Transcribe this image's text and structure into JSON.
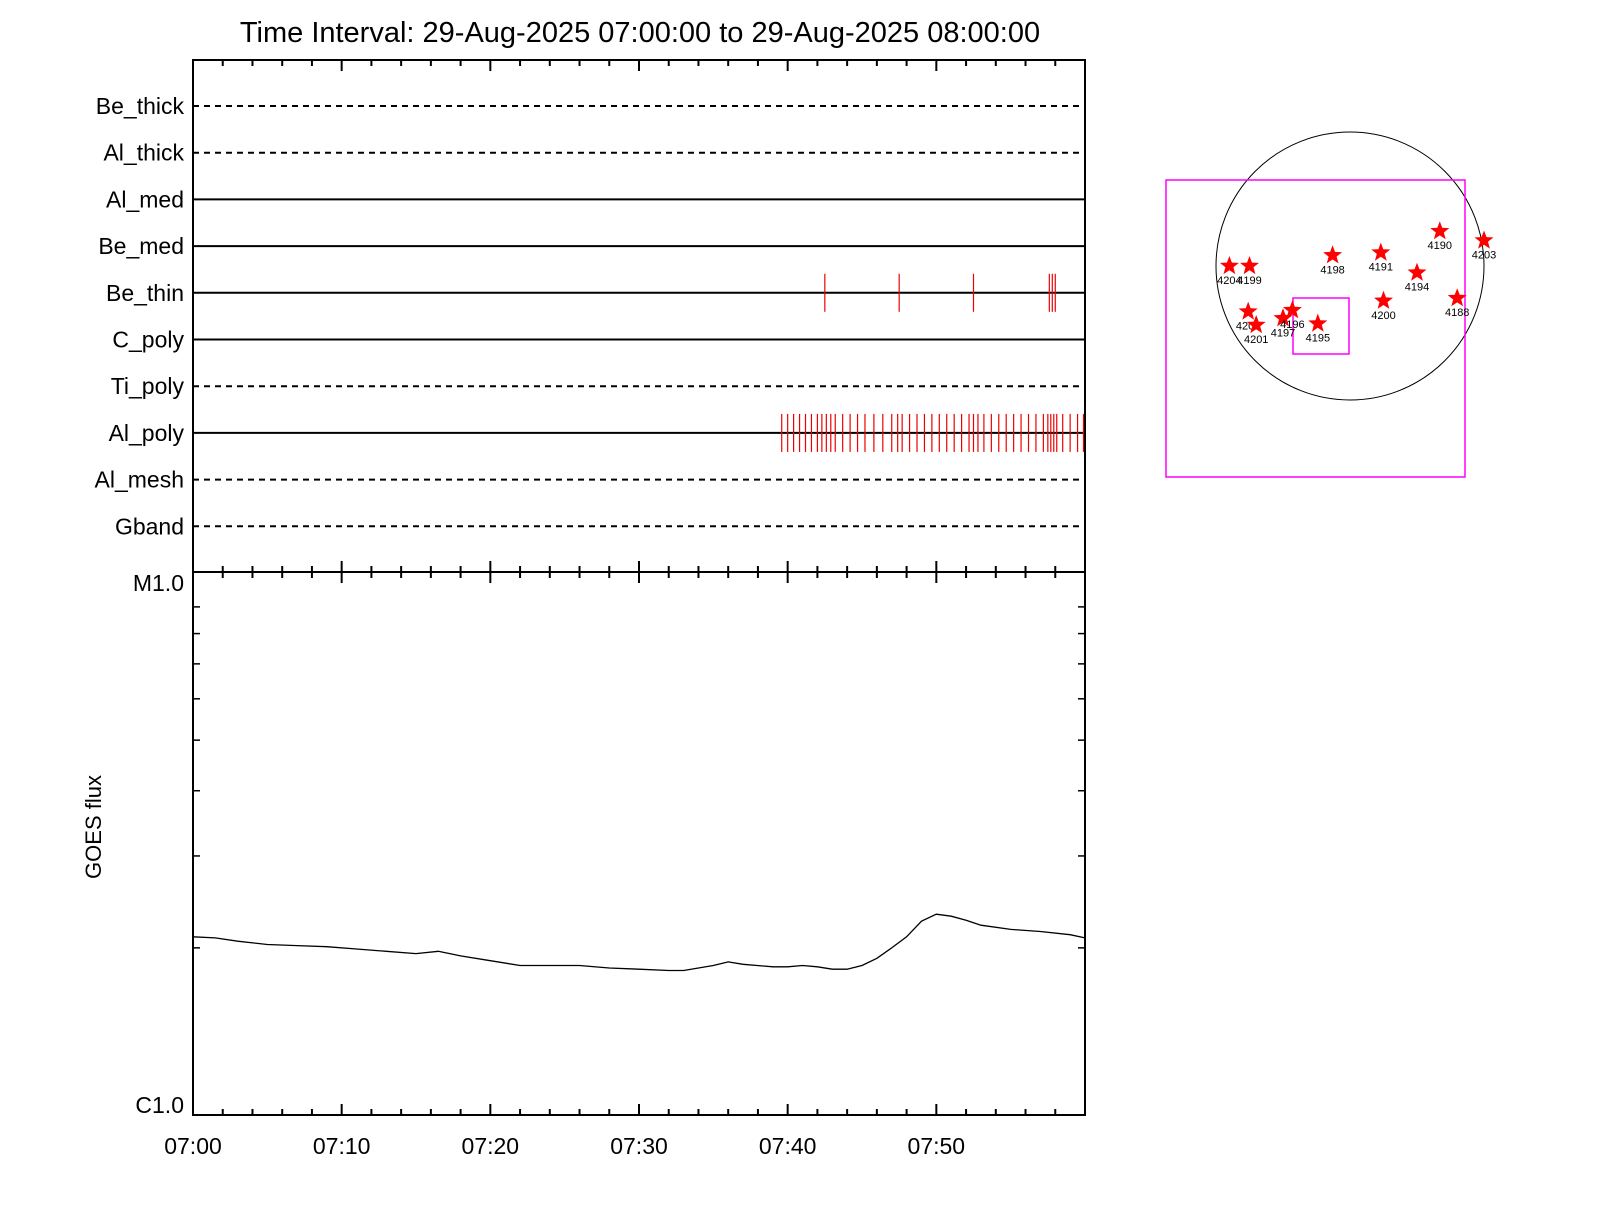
{
  "chart_data": [
    {
      "type": "timeline",
      "title": "Time Interval: 29-Aug-2025 07:00:00 to 29-Aug-2025 08:00:00",
      "x_range_minutes": [
        0,
        60
      ],
      "x_ticks": [
        "07:00",
        "07:10",
        "07:20",
        "07:30",
        "07:40",
        "07:50"
      ],
      "x_tick_minutes": [
        0,
        10,
        20,
        30,
        40,
        50
      ],
      "channels": [
        {
          "name": "Be_thick",
          "style": "dashed",
          "events": []
        },
        {
          "name": "Al_thick",
          "style": "dashed",
          "events": []
        },
        {
          "name": "Al_med",
          "style": "solid",
          "events": []
        },
        {
          "name": "Be_med",
          "style": "solid",
          "events": []
        },
        {
          "name": "Be_thin",
          "style": "solid",
          "events": [
            42.5,
            47.5,
            52.5,
            57.6,
            57.8,
            58.0
          ]
        },
        {
          "name": "C_poly",
          "style": "solid",
          "events": []
        },
        {
          "name": "Ti_poly",
          "style": "dashed",
          "events": []
        },
        {
          "name": "Al_poly",
          "style": "solid",
          "events": [
            39.6,
            40.0,
            40.4,
            40.8,
            41.2,
            41.6,
            42.0,
            42.3,
            42.6,
            42.9,
            43.2,
            43.7,
            44.2,
            44.7,
            45.2,
            45.8,
            46.4,
            47.0,
            47.4,
            47.7,
            48.2,
            48.7,
            49.2,
            49.7,
            50.2,
            50.7,
            51.2,
            51.7,
            52.2,
            52.5,
            52.8,
            53.2,
            53.7,
            54.2,
            54.7,
            55.2,
            55.7,
            56.2,
            56.7,
            57.2,
            57.5,
            57.7,
            57.9,
            58.1,
            58.5,
            59.0,
            59.5,
            59.9
          ]
        },
        {
          "name": "Al_mesh",
          "style": "dashed",
          "events": []
        },
        {
          "name": "Gband",
          "style": "dashed",
          "events": []
        }
      ],
      "event_color": "#ee0000"
    },
    {
      "type": "line",
      "ylabel": "GOES flux",
      "y_scale": "log",
      "y_range_flux": [
        1e-06,
        1e-05
      ],
      "y_tick_labels": [
        "M1.0",
        "C1.0"
      ],
      "x_range_minutes": [
        0,
        60
      ],
      "series": [
        {
          "x": [
            0,
            1.5,
            3,
            5,
            7,
            9,
            11,
            13,
            15,
            16.5,
            18,
            20,
            22,
            24,
            26,
            28,
            30,
            32,
            33,
            35,
            36,
            37,
            39,
            40,
            41,
            42,
            43,
            44,
            45,
            46,
            47,
            48,
            49,
            50,
            51,
            52,
            53,
            55,
            57,
            59,
            60
          ],
          "y": [
            2.1e-06,
            2.09e-06,
            2.06e-06,
            2.03e-06,
            2.02e-06,
            2.01e-06,
            1.99e-06,
            1.97e-06,
            1.95e-06,
            1.97e-06,
            1.93e-06,
            1.89e-06,
            1.85e-06,
            1.85e-06,
            1.85e-06,
            1.83e-06,
            1.82e-06,
            1.81e-06,
            1.81e-06,
            1.85e-06,
            1.88e-06,
            1.86e-06,
            1.84e-06,
            1.84e-06,
            1.85e-06,
            1.84e-06,
            1.82e-06,
            1.82e-06,
            1.85e-06,
            1.91e-06,
            2e-06,
            2.1e-06,
            2.25e-06,
            2.32e-06,
            2.3e-06,
            2.26e-06,
            2.21e-06,
            2.17e-06,
            2.15e-06,
            2.12e-06,
            2.09e-06
          ]
        }
      ],
      "line_color": "#000000"
    },
    {
      "type": "scatter",
      "description_type": "solar_disk_map",
      "marker_color": "#ff0000",
      "box_color": "#ff00ff",
      "regions": [
        {
          "label": "4204",
          "x": -0.9,
          "y": 0.0
        },
        {
          "label": "4199",
          "x": -0.75,
          "y": 0.0
        },
        {
          "label": "4198",
          "x": -0.13,
          "y": 0.08
        },
        {
          "label": "4191",
          "x": 0.23,
          "y": 0.1
        },
        {
          "label": "4190",
          "x": 0.67,
          "y": 0.26
        },
        {
          "label": "4203",
          "x": 1.0,
          "y": 0.19
        },
        {
          "label": "4194",
          "x": 0.5,
          "y": -0.05
        },
        {
          "label": "4188",
          "x": 0.8,
          "y": -0.24
        },
        {
          "label": "4200",
          "x": 0.25,
          "y": -0.26
        },
        {
          "label": "4202",
          "x": -0.76,
          "y": -0.34
        },
        {
          "label": "4201",
          "x": -0.7,
          "y": -0.44
        },
        {
          "label": "4197",
          "x": -0.5,
          "y": -0.39
        },
        {
          "label": "4196",
          "x": -0.43,
          "y": -0.33
        },
        {
          "label": "4195",
          "x": -0.24,
          "y": -0.43
        }
      ]
    }
  ]
}
